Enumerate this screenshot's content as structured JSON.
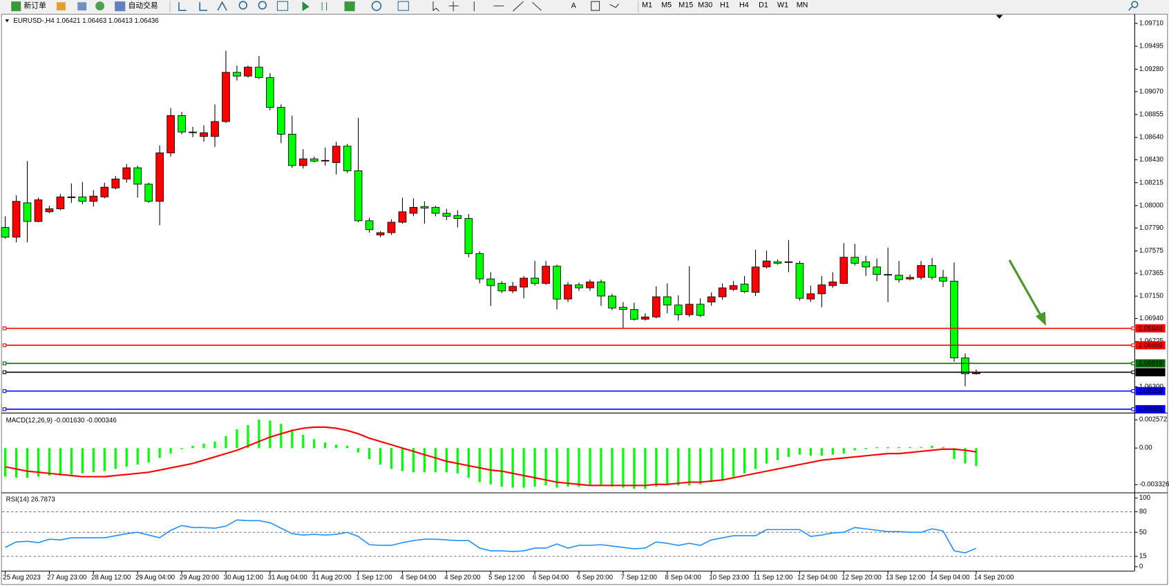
{
  "toolbar": {
    "buttons": [
      "新订单",
      "自动交易"
    ],
    "timeframes": [
      "M1",
      "M5",
      "M15",
      "M30",
      "H1",
      "H4",
      "D1",
      "W1",
      "MN"
    ]
  },
  "chart_data": [
    {
      "type": "candlestick",
      "title": "EURUSD-,H4  1.06421 1.06463 1.06413 1.06436",
      "categories": [
        "25 Aug 2023",
        null,
        null,
        null,
        "27 Aug 23:00",
        null,
        null,
        null,
        "28 Aug 12:00",
        null,
        null,
        null,
        "29 Aug 04:00",
        null,
        null,
        null,
        "29 Aug 20:00",
        null,
        null,
        null,
        "30 Aug 12:00",
        null,
        null,
        null,
        "31 Aug 04:00",
        null,
        null,
        null,
        "31 Aug 20:00",
        null,
        null,
        null,
        "1 Sep 12:00",
        null,
        null,
        null,
        "4 Sep 04:00",
        null,
        null,
        null,
        "4 Sep 20:00",
        null,
        null,
        null,
        "5 Sep 12:00",
        null,
        null,
        null,
        "6 Sep 04:00",
        null,
        null,
        null,
        "6 Sep 20:00",
        null,
        null,
        null,
        "7 Sep 12:00",
        null,
        null,
        null,
        "8 Sep 04:00",
        null,
        null,
        null,
        "10 Sep 23:00",
        null,
        null,
        null,
        "11 Sep 12:00",
        null,
        null,
        null,
        "12 Sep 04:00",
        null,
        null,
        null,
        "12 Sep 20:00",
        null,
        null,
        null,
        "13 Sep 12:00",
        null,
        null,
        null,
        "14 Sep 04:00",
        null,
        null,
        null,
        "14 Sep 20:00"
      ],
      "open": [
        1.07795,
        1.07704,
        1.08026,
        1.07851,
        1.07942,
        1.0797,
        1.08075,
        1.08082,
        1.0804,
        1.08082,
        1.08166,
        1.0825,
        1.08355,
        1.08201,
        1.0804,
        1.08495,
        1.08845,
        1.08691,
        1.08649,
        1.08649,
        1.08789,
        1.09251,
        1.09216,
        1.093,
        1.09202,
        1.08922,
        1.0867,
        1.08376,
        1.08439,
        1.08418,
        1.08404,
        1.08558,
        1.08327,
        1.07858,
        1.07725,
        1.07746,
        1.07844,
        1.07928,
        1.07991,
        1.07984,
        1.07928,
        1.07907,
        1.07879,
        1.0755,
        1.07312,
        1.0727,
        1.072,
        1.07235,
        1.07319,
        1.0727,
        1.07431,
        1.07123,
        1.07256,
        1.07228,
        1.07284,
        1.07151,
        1.07046,
        1.07025,
        1.06934,
        1.06955,
        1.07144,
        1.07067,
        1.06976,
        1.07074,
        1.07095,
        1.07144,
        1.07214,
        1.07263,
        1.07186,
        1.07424,
        1.07473,
        1.07466,
        1.07459,
        1.07123,
        1.07172,
        1.07249,
        1.0727,
        1.07515,
        1.07473,
        1.07424,
        1.07354,
        1.07347,
        1.07312,
        1.07326,
        1.07438,
        1.07326,
        1.07291,
        1.0657,
        1.06421
      ],
      "high": [
        1.079,
        1.08096,
        1.08418,
        1.08075,
        1.07998,
        1.0811,
        1.08208,
        1.08222,
        1.08145,
        1.08215,
        1.08278,
        1.0839,
        1.08376,
        1.08215,
        1.08565,
        1.08915,
        1.0888,
        1.0874,
        1.08754,
        1.0895,
        1.09454,
        1.09314,
        1.09314,
        1.09405,
        1.09244,
        1.0895,
        1.08845,
        1.0853,
        1.0846,
        1.08544,
        1.086,
        1.08579,
        1.08824,
        1.07886,
        1.0776,
        1.07872,
        1.08075,
        1.08068,
        1.0804,
        1.07998,
        1.0797,
        1.07956,
        1.07921,
        1.07571,
        1.07375,
        1.07291,
        1.07284,
        1.0734,
        1.0748,
        1.0748,
        1.07445,
        1.07284,
        1.07277,
        1.07305,
        1.07305,
        1.07172,
        1.07095,
        1.07088,
        1.0699,
        1.07242,
        1.0727,
        1.07158,
        1.07431,
        1.0713,
        1.07186,
        1.0727,
        1.07291,
        1.0734,
        1.07585,
        1.07578,
        1.07494,
        1.07676,
        1.0748,
        1.07249,
        1.0734,
        1.07375,
        1.07648,
        1.07641,
        1.07529,
        1.07501,
        1.07606,
        1.0748,
        1.07354,
        1.0748,
        1.07508,
        1.07396,
        1.07466,
        1.06612,
        1.06463
      ],
      "low": [
        1.0769,
        1.07655,
        1.07655,
        1.07844,
        1.07928,
        1.07956,
        1.08026,
        1.08012,
        1.07991,
        1.08068,
        1.08152,
        1.08215,
        1.08075,
        1.08026,
        1.07816,
        1.0846,
        1.0867,
        1.08642,
        1.086,
        1.08551,
        1.08775,
        1.09174,
        1.09202,
        1.09188,
        1.08894,
        1.08586,
        1.08355,
        1.08348,
        1.08404,
        1.08376,
        1.08292,
        1.08306,
        1.07844,
        1.07746,
        1.07704,
        1.07725,
        1.0783,
        1.079,
        1.0783,
        1.079,
        1.07865,
        1.07795,
        1.07515,
        1.0727,
        1.0706,
        1.07179,
        1.07179,
        1.0713,
        1.07249,
        1.07256,
        1.07025,
        1.07095,
        1.072,
        1.072,
        1.0706,
        1.07018,
        1.0685,
        1.0692,
        1.0692,
        1.06941,
        1.0699,
        1.0692,
        1.06955,
        1.06955,
        1.0706,
        1.07116,
        1.072,
        1.07179,
        1.07151,
        1.0741,
        1.07445,
        1.07375,
        1.07109,
        1.07095,
        1.07046,
        1.07228,
        1.07263,
        1.07438,
        1.0734,
        1.07291,
        1.07095,
        1.07277,
        1.07298,
        1.07305,
        1.07305,
        1.07235,
        1.06535,
        1.06304,
        1.06413
      ],
      "close": [
        1.07704,
        1.0804,
        1.07851,
        1.08054,
        1.0797,
        1.08082,
        1.08082,
        1.0804,
        1.08089,
        1.08173,
        1.0825,
        1.08355,
        1.08201,
        1.0804,
        1.08495,
        1.08845,
        1.08691,
        1.08684,
        1.08684,
        1.08789,
        1.09251,
        1.09216,
        1.093,
        1.09202,
        1.08922,
        1.0867,
        1.08376,
        1.08439,
        1.08418,
        1.08425,
        1.08558,
        1.08327,
        1.07858,
        1.07774,
        1.07746,
        1.07844,
        1.07942,
        1.07984,
        1.07977,
        1.07928,
        1.079,
        1.07879,
        1.0755,
        1.07312,
        1.07249,
        1.072,
        1.07242,
        1.07319,
        1.0727,
        1.07431,
        1.07123,
        1.07256,
        1.07228,
        1.07284,
        1.07151,
        1.07039,
        1.07025,
        1.06934,
        1.06955,
        1.07144,
        1.07067,
        1.06976,
        1.07074,
        1.06969,
        1.07144,
        1.07228,
        1.07249,
        1.07193,
        1.07424,
        1.0748,
        1.07459,
        1.07473,
        1.0713,
        1.07172,
        1.07256,
        1.07284,
        1.07515,
        1.07459,
        1.07424,
        1.07354,
        1.07347,
        1.07305,
        1.07326,
        1.07438,
        1.07326,
        1.07291,
        1.0657,
        1.06421,
        1.06436
      ],
      "up_color": "#ff0000",
      "down_color": "#00ff00",
      "ylim": [
        1.0606,
        1.0979
      ],
      "yticks": [
        {
          "value": 1.0971,
          "label": "1.09710"
        },
        {
          "value": 1.09495,
          "label": "1.09495"
        },
        {
          "value": 1.0928,
          "label": "1.09280"
        },
        {
          "value": 1.0907,
          "label": "1.09070"
        },
        {
          "value": 1.08855,
          "label": "1.08855"
        },
        {
          "value": 1.0864,
          "label": "1.08640"
        },
        {
          "value": 1.0843,
          "label": "1.08430"
        },
        {
          "value": 1.08215,
          "label": "1.08215"
        },
        {
          "value": 1.08,
          "label": "1.08000"
        },
        {
          "value": 1.0779,
          "label": "1.07790"
        },
        {
          "value": 1.07575,
          "label": "1.07575"
        },
        {
          "value": 1.07365,
          "label": "1.07365"
        },
        {
          "value": 1.0715,
          "label": "1.07150"
        },
        {
          "value": 1.0694,
          "label": "1.06940"
        },
        {
          "value": 1.06725,
          "label": "1.06725"
        },
        {
          "value": 1.063,
          "label": "1.06300"
        }
      ],
      "hlines": [
        {
          "value": 1.06848,
          "color": "#ff0000"
        },
        {
          "value": 1.06689,
          "color": "#ff0000"
        },
        {
          "value": 1.06519,
          "color": "#006400"
        },
        {
          "value": 1.06436,
          "color": "#000000"
        },
        {
          "value": 1.06259,
          "color": "#0000ff"
        },
        {
          "value": 1.06089,
          "color": "#0000ff"
        }
      ]
    },
    {
      "type": "bar",
      "title": "MACD(12,26,9) -0.001630 -0.000346",
      "series": [
        {
          "type": "bar",
          "color": "#00ff00",
          "values": [
            -0.0026,
            -0.0027,
            -0.0027,
            -0.0026,
            -0.0025,
            -0.0025,
            -0.0024,
            -0.0023,
            -0.0022,
            -0.0021,
            -0.0019,
            -0.0017,
            -0.0015,
            -0.0013,
            -0.0009,
            -0.0005,
            -0.0001,
            0.0002,
            0.0004,
            0.0006,
            0.0011,
            0.0017,
            0.0021,
            0.0026,
            0.0025,
            0.0022,
            0.0017,
            0.0012,
            0.0008,
            0.0005,
            0.0003,
            0.0002,
            -0.0004,
            -0.001,
            -0.0015,
            -0.0019,
            -0.0021,
            -0.0022,
            -0.0022,
            -0.0022,
            -0.0022,
            -0.0023,
            -0.0027,
            -0.0031,
            -0.0033,
            -0.0035,
            -0.0036,
            -0.0036,
            -0.0035,
            -0.0034,
            -0.0036,
            -0.0035,
            -0.0035,
            -0.0034,
            -0.0034,
            -0.0035,
            -0.0036,
            -0.0037,
            -0.0037,
            -0.0035,
            -0.0034,
            -0.0034,
            -0.0034,
            -0.0033,
            -0.0031,
            -0.0029,
            -0.0026,
            -0.0023,
            -0.0019,
            -0.0014,
            -0.0011,
            -0.0008,
            -0.0006,
            -0.0007,
            -0.0007,
            -0.0006,
            -0.0005,
            -0.0002,
            -0.0001,
            0.0001,
            0.0001,
            0.0001,
            0.0001,
            0.0001,
            0.0002,
            0.0001,
            -0.001,
            -0.0014,
            -0.00163
          ]
        },
        {
          "type": "line",
          "color": "#ff0000",
          "values": [
            -0.0017,
            -0.0019,
            -0.0021,
            -0.0022,
            -0.0023,
            -0.0024,
            -0.0025,
            -0.0026,
            -0.0026,
            -0.0026,
            -0.0025,
            -0.0024,
            -0.0023,
            -0.0022,
            -0.002,
            -0.0018,
            -0.0016,
            -0.0014,
            -0.0011,
            -0.0008,
            -0.0005,
            -0.0002,
            0.0002,
            0.0006,
            0.001,
            0.0013,
            0.0016,
            0.0018,
            0.0019,
            0.0019,
            0.0018,
            0.0016,
            0.0013,
            0.0009,
            0.0006,
            0.0003,
            0,
            -0.0003,
            -0.0006,
            -0.0009,
            -0.0012,
            -0.0014,
            -0.0016,
            -0.0018,
            -0.002,
            -0.0021,
            -0.0023,
            -0.0025,
            -0.0027,
            -0.0029,
            -0.0031,
            -0.0032,
            -0.0033,
            -0.0034,
            -0.0034,
            -0.0034,
            -0.0034,
            -0.0034,
            -0.0034,
            -0.0033,
            -0.0033,
            -0.0032,
            -0.0031,
            -0.0031,
            -0.003,
            -0.0029,
            -0.0027,
            -0.0025,
            -0.0023,
            -0.0021,
            -0.0019,
            -0.0017,
            -0.0015,
            -0.0013,
            -0.0011,
            -0.001,
            -0.0009,
            -0.0008,
            -0.0007,
            -0.0006,
            -0.0005,
            -0.0005,
            -0.0004,
            -0.0003,
            -0.0002,
            -0.0001,
            -0.0001,
            -0.0002,
            -0.000346
          ]
        }
      ],
      "ylim": [
        -0.004,
        0.00305
      ],
      "yticks": [
        0.002572,
        {
          "value": 0,
          "label": "0.00"
        },
        -0.003326
      ]
    },
    {
      "type": "line",
      "title": "RSI(14) 26.7873",
      "color": "#1e90ff",
      "values": [
        28,
        36,
        37,
        35,
        40,
        39,
        42,
        42,
        42,
        42,
        45,
        48,
        50,
        46,
        42,
        53,
        60,
        57,
        57,
        56,
        59,
        68,
        67,
        67,
        64,
        56,
        48,
        46,
        47,
        46,
        47,
        50,
        44,
        32,
        31,
        31,
        35,
        38,
        40,
        40,
        39,
        38,
        38,
        27,
        23,
        23,
        22,
        23,
        27,
        27,
        33,
        27,
        31,
        31,
        32,
        30,
        28,
        26,
        27,
        36,
        34,
        31,
        34,
        31,
        39,
        42,
        45,
        45,
        45,
        54,
        54,
        54,
        54,
        44,
        46,
        49,
        50,
        57,
        55,
        53,
        51,
        51,
        50,
        50,
        55,
        52,
        23,
        20,
        26.7873
      ],
      "ylim": [
        -5.4,
        105.4
      ],
      "yticks": [
        100,
        80,
        50,
        15,
        0
      ],
      "levels": [
        80,
        50,
        15
      ]
    }
  ]
}
